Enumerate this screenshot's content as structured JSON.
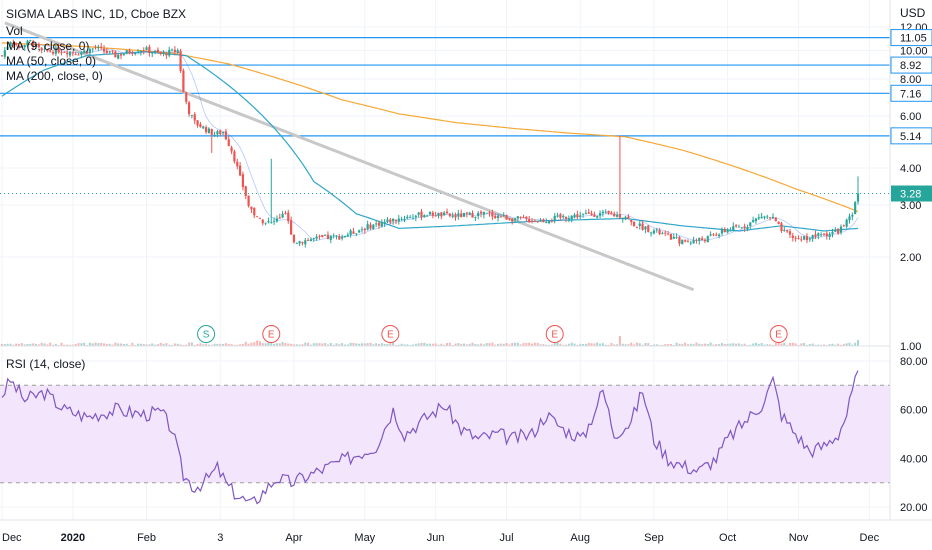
{
  "chart_data": {
    "type": "candlestick",
    "title": "SIGMA LABS INC, 1D, Cboe BZX",
    "currency": "USD",
    "legend": [
      "Vol",
      "MA (9, close, 0)",
      "MA (50, close, 0)",
      "MA (200, close, 0)"
    ],
    "x_ticks": [
      "Dec",
      "2020",
      "Feb",
      "3",
      "Apr",
      "May",
      "Jun",
      "Jul",
      "Aug",
      "Sep",
      "Oct",
      "Nov",
      "Dec"
    ],
    "y_ticks": [
      "12.00",
      "10.00",
      "8.00",
      "6.00",
      "4.00",
      "3.00",
      "2.00",
      "1.00"
    ],
    "ylim": [
      1.0,
      12.0
    ],
    "y_scale": "log",
    "last_price": "3.28",
    "horizontal_levels": [
      {
        "value": 11.05,
        "label": "11.05"
      },
      {
        "value": 8.92,
        "label": "8.92"
      },
      {
        "value": 7.16,
        "label": "7.16"
      },
      {
        "value": 5.14,
        "label": "5.14"
      }
    ],
    "events": [
      {
        "label": "S",
        "color": "#26a69a",
        "x_day": 72
      },
      {
        "label": "E",
        "color": "#ef5350",
        "x_day": 95
      },
      {
        "label": "E",
        "color": "#ef5350",
        "x_day": 137
      },
      {
        "label": "E",
        "color": "#ef5350",
        "x_day": 195
      },
      {
        "label": "E",
        "color": "#ef5350",
        "x_day": 274
      }
    ],
    "price_keyframes": [
      [
        0,
        9.6
      ],
      [
        3,
        10.8
      ],
      [
        6,
        10.3
      ],
      [
        10,
        10.7
      ],
      [
        14,
        9.9
      ],
      [
        20,
        10.0
      ],
      [
        27,
        9.8
      ],
      [
        33,
        10.2
      ],
      [
        40,
        9.6
      ],
      [
        45,
        9.9
      ],
      [
        50,
        10.1
      ],
      [
        56,
        9.7
      ],
      [
        62,
        10.0
      ],
      [
        64,
        7.2
      ],
      [
        66,
        6.2
      ],
      [
        68,
        5.7
      ],
      [
        72,
        5.4
      ],
      [
        75,
        5.2
      ],
      [
        78,
        5.3
      ],
      [
        81,
        4.6
      ],
      [
        84,
        3.7
      ],
      [
        87,
        3.0
      ],
      [
        90,
        2.7
      ],
      [
        95,
        2.6
      ],
      [
        100,
        2.8
      ],
      [
        103,
        2.25
      ],
      [
        110,
        2.3
      ],
      [
        120,
        2.35
      ],
      [
        130,
        2.55
      ],
      [
        140,
        2.7
      ],
      [
        150,
        2.8
      ],
      [
        160,
        2.75
      ],
      [
        170,
        2.8
      ],
      [
        180,
        2.7
      ],
      [
        190,
        2.65
      ],
      [
        200,
        2.75
      ],
      [
        210,
        2.8
      ],
      [
        220,
        2.75
      ],
      [
        222,
        2.6
      ],
      [
        230,
        2.45
      ],
      [
        240,
        2.25
      ],
      [
        248,
        2.3
      ],
      [
        255,
        2.45
      ],
      [
        262,
        2.55
      ],
      [
        268,
        2.75
      ],
      [
        272,
        2.7
      ],
      [
        275,
        2.45
      ],
      [
        280,
        2.3
      ],
      [
        287,
        2.35
      ],
      [
        295,
        2.45
      ],
      [
        300,
        2.75
      ],
      [
        302,
        3.28
      ]
    ],
    "ma200_keyframes": [
      [
        0,
        10.6
      ],
      [
        30,
        10.3
      ],
      [
        60,
        9.8
      ],
      [
        80,
        9.0
      ],
      [
        100,
        7.9
      ],
      [
        120,
        6.8
      ],
      [
        140,
        6.1
      ],
      [
        160,
        5.7
      ],
      [
        180,
        5.45
      ],
      [
        200,
        5.25
      ],
      [
        220,
        5.1
      ],
      [
        240,
        4.6
      ],
      [
        260,
        4.0
      ],
      [
        280,
        3.4
      ],
      [
        302,
        2.85
      ]
    ],
    "ma50_keyframes": [
      [
        0,
        7.0
      ],
      [
        15,
        8.6
      ],
      [
        30,
        9.6
      ],
      [
        50,
        9.9
      ],
      [
        65,
        9.6
      ],
      [
        80,
        7.6
      ],
      [
        95,
        5.6
      ],
      [
        110,
        3.6
      ],
      [
        125,
        2.8
      ],
      [
        140,
        2.5
      ],
      [
        160,
        2.55
      ],
      [
        190,
        2.65
      ],
      [
        220,
        2.7
      ],
      [
        240,
        2.55
      ],
      [
        260,
        2.45
      ],
      [
        275,
        2.55
      ],
      [
        290,
        2.45
      ],
      [
        302,
        2.5
      ]
    ],
    "trendline": [
      [
        1,
        12.4
      ],
      [
        244,
        1.55
      ]
    ],
    "rsi": {
      "label": "RSI (14, close)",
      "y_ticks": [
        "80.00",
        "60.00",
        "40.00",
        "20.00"
      ],
      "ylim": [
        18,
        82
      ],
      "band": [
        30,
        70
      ],
      "keyframes": [
        [
          0,
          66
        ],
        [
          3,
          72
        ],
        [
          8,
          64
        ],
        [
          15,
          67
        ],
        [
          22,
          60
        ],
        [
          30,
          57
        ],
        [
          40,
          60
        ],
        [
          50,
          58
        ],
        [
          56,
          59
        ],
        [
          60,
          52
        ],
        [
          64,
          33
        ],
        [
          68,
          28
        ],
        [
          72,
          31
        ],
        [
          76,
          36
        ],
        [
          80,
          28
        ],
        [
          84,
          24
        ],
        [
          88,
          21
        ],
        [
          92,
          26
        ],
        [
          97,
          32
        ],
        [
          102,
          30
        ],
        [
          112,
          35
        ],
        [
          122,
          40
        ],
        [
          132,
          45
        ],
        [
          138,
          60
        ],
        [
          142,
          50
        ],
        [
          150,
          57
        ],
        [
          156,
          62
        ],
        [
          162,
          52
        ],
        [
          168,
          48
        ],
        [
          175,
          50
        ],
        [
          180,
          48
        ],
        [
          187,
          50
        ],
        [
          192,
          58
        ],
        [
          198,
          52
        ],
        [
          205,
          48
        ],
        [
          212,
          68
        ],
        [
          216,
          50
        ],
        [
          222,
          55
        ],
        [
          226,
          68
        ],
        [
          230,
          48
        ],
        [
          235,
          40
        ],
        [
          240,
          37
        ],
        [
          246,
          35
        ],
        [
          252,
          40
        ],
        [
          256,
          48
        ],
        [
          262,
          55
        ],
        [
          268,
          62
        ],
        [
          272,
          72
        ],
        [
          275,
          58
        ],
        [
          280,
          50
        ],
        [
          285,
          43
        ],
        [
          290,
          45
        ],
        [
          295,
          50
        ],
        [
          298,
          58
        ],
        [
          302,
          76
        ]
      ]
    }
  }
}
